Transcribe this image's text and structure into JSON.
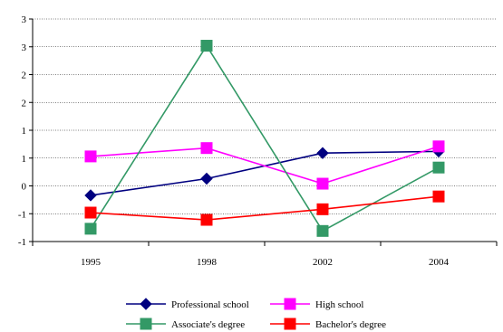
{
  "chart_data": {
    "type": "line",
    "title": "",
    "xlabel": "",
    "ylabel": "",
    "categories": [
      "1995",
      "1998",
      "2002",
      "2004"
    ],
    "ylim": [
      -1,
      3
    ],
    "y_tick_values": [
      -1,
      -0.5,
      0,
      0.5,
      1,
      1.5,
      2,
      2.5,
      3
    ],
    "y_tick_labels": [
      "-1",
      "-1",
      "0",
      "1",
      "1",
      "2",
      "2",
      "3",
      "3"
    ],
    "grid": true,
    "legend_position": "bottom",
    "series": [
      {
        "name": "Professional school",
        "marker": "diamond",
        "color": "#000080",
        "values": [
          -0.17,
          0.13,
          0.59,
          0.62
        ]
      },
      {
        "name": "High school",
        "marker": "square",
        "color": "#ff00ff",
        "values": [
          0.53,
          0.68,
          0.04,
          0.71
        ]
      },
      {
        "name": "Associate's degree",
        "marker": "square",
        "color": "#339966",
        "values": [
          -0.77,
          2.52,
          -0.81,
          0.33
        ]
      },
      {
        "name": "Bachelor's degree",
        "marker": "square",
        "color": "#ff0000",
        "values": [
          -0.48,
          -0.61,
          -0.42,
          -0.19
        ]
      }
    ]
  }
}
